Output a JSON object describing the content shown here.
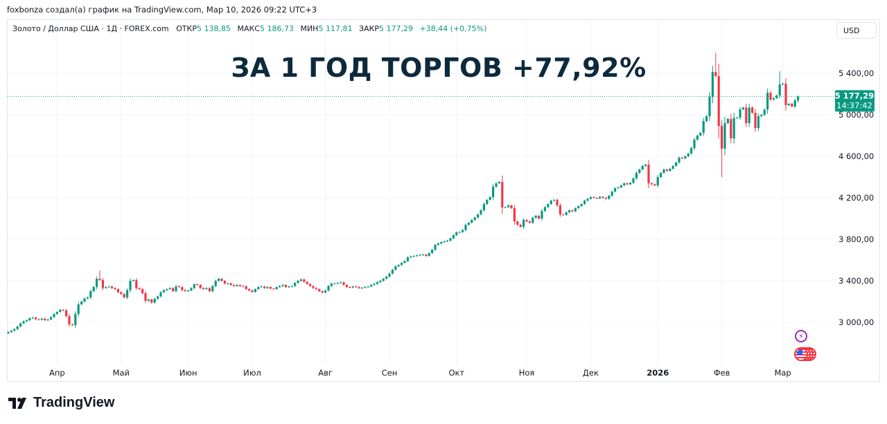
{
  "credit": "foxbonza создал(а) график на TradingView.com, Мар 10, 2026 09:22 UTC+3",
  "legend": {
    "symbol": "Золото / Доллар США · 1Д · FOREX.com",
    "open_label": "ОТКР",
    "open": "5 138,85",
    "high_label": "МАКС",
    "high": "5 186,73",
    "low_label": "МИН",
    "low": "5 117,81",
    "close_label": "ЗАКР",
    "close": "5 177,29",
    "change": "+38,44 (+0,75%)"
  },
  "currency": "USD",
  "headline": "ЗА 1 ГОД ТОРГОВ +77,92%",
  "last_price": {
    "price": "5 177,29",
    "countdown": "14:37:42",
    "value": 5177.29
  },
  "footer": {
    "brand": "TradingView"
  },
  "colors": {
    "up": "#089981",
    "down": "#f23645",
    "headline": "#0d2a3d",
    "grid": "#f0f3fa",
    "event": "#9c27b0"
  },
  "icons": {
    "event": "lightning-icon",
    "economic": "us-flag-icon"
  },
  "chart_data": {
    "type": "candlestick",
    "interval": "1D",
    "ylim": [
      2750,
      5750
    ],
    "y_ticks": [
      {
        "value": 3000,
        "label": "3 000,00"
      },
      {
        "value": 3400,
        "label": "3 400,00"
      },
      {
        "value": 3800,
        "label": "3 800,00"
      },
      {
        "value": 4200,
        "label": "4 200,00"
      },
      {
        "value": 4600,
        "label": "4 600,00"
      },
      {
        "value": 5000,
        "label": "5 000,00"
      },
      {
        "value": 5400,
        "label": "5 400,00"
      }
    ],
    "x_ticks": [
      {
        "index": 16,
        "label": "Апр"
      },
      {
        "index": 37,
        "label": "Май"
      },
      {
        "index": 59,
        "label": "Июн"
      },
      {
        "index": 80,
        "label": "Июл"
      },
      {
        "index": 104,
        "label": "Авг"
      },
      {
        "index": 125,
        "label": "Сен"
      },
      {
        "index": 147,
        "label": "Окт"
      },
      {
        "index": 170,
        "label": "Ноя"
      },
      {
        "index": 191,
        "label": "Дек"
      },
      {
        "index": 213,
        "label": "2026",
        "bold": true
      },
      {
        "index": 234,
        "label": "Фев"
      },
      {
        "index": 254,
        "label": "Мар"
      }
    ],
    "grid": true,
    "closes": [
      2907,
      2920,
      2935,
      2960,
      2990,
      3010,
      3020,
      3040,
      3045,
      3030,
      3025,
      3035,
      3020,
      3027,
      3050,
      3080,
      3100,
      3120,
      3115,
      3060,
      2980,
      2973,
      3080,
      3173,
      3200,
      3230,
      3240,
      3300,
      3340,
      3420,
      3407,
      3330,
      3340,
      3345,
      3330,
      3320,
      3290,
      3273,
      3240,
      3310,
      3400,
      3407,
      3330,
      3320,
      3280,
      3207,
      3220,
      3190,
      3227,
      3250,
      3290,
      3310,
      3320,
      3330,
      3300,
      3347,
      3340,
      3310,
      3300,
      3307,
      3330,
      3367,
      3360,
      3330,
      3320,
      3330,
      3300,
      3350,
      3400,
      3420,
      3400,
      3373,
      3375,
      3360,
      3350,
      3360,
      3350,
      3347,
      3320,
      3307,
      3293,
      3320,
      3340,
      3345,
      3330,
      3340,
      3325,
      3320,
      3340,
      3350,
      3360,
      3340,
      3345,
      3350,
      3380,
      3400,
      3413,
      3390,
      3370,
      3350,
      3330,
      3320,
      3300,
      3287,
      3307,
      3350,
      3373,
      3375,
      3380,
      3385,
      3360,
      3340,
      3335,
      3345,
      3340,
      3330,
      3333,
      3340,
      3345,
      3360,
      3370,
      3387,
      3400,
      3420,
      3440,
      3470,
      3507,
      3540,
      3553,
      3573,
      3590,
      3627,
      3635,
      3640,
      3645,
      3650,
      3653,
      3640,
      3667,
      3700,
      3747,
      3760,
      3773,
      3780,
      3787,
      3810,
      3840,
      3867,
      3870,
      3890,
      3940,
      3960,
      3987,
      4010,
      4040,
      4080,
      4140,
      4180,
      4207,
      4307,
      4340,
      4353,
      4107,
      4110,
      4127,
      4100,
      3973,
      3940,
      3920,
      3987,
      3973,
      3960,
      4007,
      4027,
      4000,
      4073,
      4110,
      4140,
      4173,
      4180,
      4127,
      4040,
      4035,
      4060,
      4080,
      4070,
      4100,
      4120,
      4140,
      4173,
      4190,
      4207,
      4200,
      4195,
      4210,
      4200,
      4190,
      4220,
      4260,
      4293,
      4300,
      4320,
      4340,
      4330,
      4345,
      4387,
      4440,
      4473,
      4507,
      4520,
      4340,
      4330,
      4320,
      4400,
      4440,
      4473,
      4460,
      4480,
      4507,
      4540,
      4587,
      4580,
      4600,
      4627,
      4680,
      4760,
      4800,
      4827,
      4940,
      4987,
      5173,
      5413,
      5373,
      4893,
      4673,
      4920,
      4960,
      4773,
      4970,
      4973,
      5053,
      5070,
      4920,
      5070,
      5020,
      4873,
      4987,
      5000,
      5050,
      5213,
      5147,
      5160,
      5187,
      5293,
      5300,
      5093,
      5107,
      5080,
      5140,
      5177.29
    ],
    "first_open": 2895,
    "notable_extremes": [
      {
        "index": 30,
        "high": 3500
      },
      {
        "index": 232,
        "high": 5598
      },
      {
        "index": 234,
        "low": 4400
      },
      {
        "index": 253,
        "high": 5420
      },
      {
        "index": 259,
        "open": 5138.85,
        "high": 5186.73,
        "low": 5117.81
      }
    ]
  }
}
